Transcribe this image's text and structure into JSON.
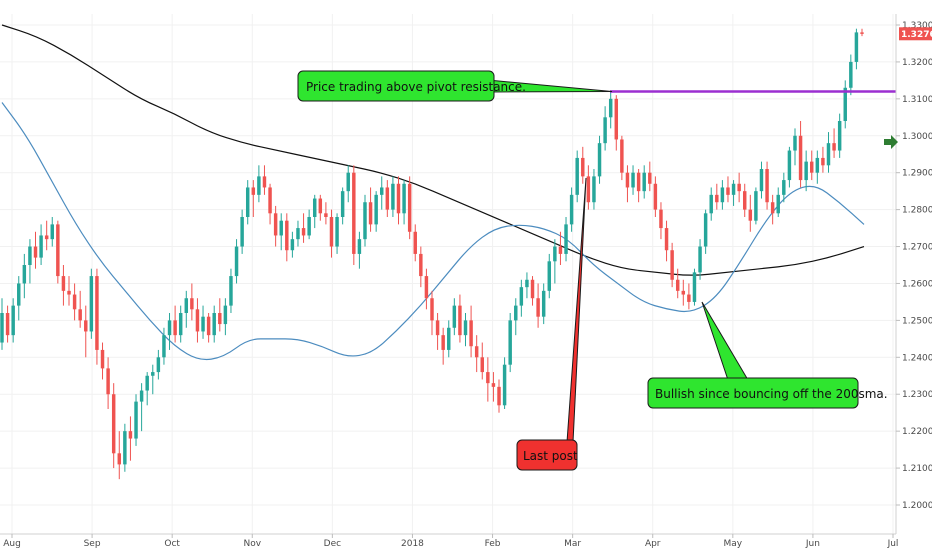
{
  "chart_data": {
    "type": "candlestick",
    "y_axis": {
      "min": 1.2,
      "max": 1.33,
      "side": "right",
      "ticks": [
        {
          "value": 1.33,
          "label": "1.33000"
        },
        {
          "value": 1.32,
          "label": "1.32000"
        },
        {
          "value": 1.31,
          "label": "1.31000"
        },
        {
          "value": 1.3,
          "label": "1.30000"
        },
        {
          "value": 1.29,
          "label": "1.29000"
        },
        {
          "value": 1.28,
          "label": "1.28000"
        },
        {
          "value": 1.27,
          "label": "1.27000"
        },
        {
          "value": 1.26,
          "label": "1.26000"
        },
        {
          "value": 1.25,
          "label": "1.25000"
        },
        {
          "value": 1.24,
          "label": "1.24000"
        },
        {
          "value": 1.23,
          "label": "1.23000"
        },
        {
          "value": 1.22,
          "label": "1.22000"
        },
        {
          "value": 1.21,
          "label": "1.21000"
        },
        {
          "value": 1.2,
          "label": "1.20000"
        }
      ]
    },
    "x_axis": {
      "ticks": [
        "Aug",
        "Sep",
        "Oct",
        "Nov",
        "Dec",
        "2018",
        "Feb",
        "Mar",
        "Apr",
        "May",
        "Jun",
        "Jul"
      ]
    },
    "last_price": {
      "value": 1.32762,
      "label": "1.32762"
    },
    "pivot_resistance": 1.312,
    "candles": [
      {
        "o": 1.244,
        "h": 1.256,
        "l": 1.242,
        "c": 1.252
      },
      {
        "o": 1.252,
        "h": 1.254,
        "l": 1.244,
        "c": 1.246
      },
      {
        "o": 1.246,
        "h": 1.256,
        "l": 1.244,
        "c": 1.254
      },
      {
        "o": 1.254,
        "h": 1.262,
        "l": 1.25,
        "c": 1.26
      },
      {
        "o": 1.26,
        "h": 1.268,
        "l": 1.256,
        "c": 1.265
      },
      {
        "o": 1.265,
        "h": 1.272,
        "l": 1.26,
        "c": 1.27
      },
      {
        "o": 1.27,
        "h": 1.274,
        "l": 1.264,
        "c": 1.267
      },
      {
        "o": 1.267,
        "h": 1.276,
        "l": 1.265,
        "c": 1.273
      },
      {
        "o": 1.273,
        "h": 1.277,
        "l": 1.269,
        "c": 1.272
      },
      {
        "o": 1.272,
        "h": 1.278,
        "l": 1.27,
        "c": 1.276
      },
      {
        "o": 1.276,
        "h": 1.277,
        "l": 1.26,
        "c": 1.262
      },
      {
        "o": 1.262,
        "h": 1.265,
        "l": 1.254,
        "c": 1.258
      },
      {
        "o": 1.258,
        "h": 1.262,
        "l": 1.254,
        "c": 1.257
      },
      {
        "o": 1.257,
        "h": 1.26,
        "l": 1.25,
        "c": 1.253
      },
      {
        "o": 1.253,
        "h": 1.258,
        "l": 1.248,
        "c": 1.25
      },
      {
        "o": 1.25,
        "h": 1.254,
        "l": 1.24,
        "c": 1.247
      },
      {
        "o": 1.247,
        "h": 1.264,
        "l": 1.245,
        "c": 1.262
      },
      {
        "o": 1.262,
        "h": 1.264,
        "l": 1.238,
        "c": 1.242
      },
      {
        "o": 1.242,
        "h": 1.244,
        "l": 1.234,
        "c": 1.237
      },
      {
        "o": 1.237,
        "h": 1.24,
        "l": 1.226,
        "c": 1.23
      },
      {
        "o": 1.23,
        "h": 1.233,
        "l": 1.21,
        "c": 1.214
      },
      {
        "o": 1.214,
        "h": 1.22,
        "l": 1.207,
        "c": 1.211
      },
      {
        "o": 1.211,
        "h": 1.222,
        "l": 1.209,
        "c": 1.22
      },
      {
        "o": 1.22,
        "h": 1.224,
        "l": 1.212,
        "c": 1.218
      },
      {
        "o": 1.218,
        "h": 1.23,
        "l": 1.216,
        "c": 1.228
      },
      {
        "o": 1.228,
        "h": 1.233,
        "l": 1.22,
        "c": 1.231
      },
      {
        "o": 1.231,
        "h": 1.236,
        "l": 1.227,
        "c": 1.235
      },
      {
        "o": 1.235,
        "h": 1.238,
        "l": 1.23,
        "c": 1.236
      },
      {
        "o": 1.236,
        "h": 1.242,
        "l": 1.234,
        "c": 1.24
      },
      {
        "o": 1.24,
        "h": 1.248,
        "l": 1.238,
        "c": 1.246
      },
      {
        "o": 1.246,
        "h": 1.252,
        "l": 1.242,
        "c": 1.25
      },
      {
        "o": 1.25,
        "h": 1.254,
        "l": 1.244,
        "c": 1.246
      },
      {
        "o": 1.246,
        "h": 1.254,
        "l": 1.244,
        "c": 1.252
      },
      {
        "o": 1.252,
        "h": 1.258,
        "l": 1.248,
        "c": 1.256
      },
      {
        "o": 1.256,
        "h": 1.26,
        "l": 1.25,
        "c": 1.253
      },
      {
        "o": 1.253,
        "h": 1.256,
        "l": 1.244,
        "c": 1.247
      },
      {
        "o": 1.247,
        "h": 1.254,
        "l": 1.245,
        "c": 1.251
      },
      {
        "o": 1.251,
        "h": 1.252,
        "l": 1.244,
        "c": 1.246
      },
      {
        "o": 1.246,
        "h": 1.254,
        "l": 1.244,
        "c": 1.252
      },
      {
        "o": 1.252,
        "h": 1.256,
        "l": 1.247,
        "c": 1.249
      },
      {
        "o": 1.249,
        "h": 1.256,
        "l": 1.246,
        "c": 1.254
      },
      {
        "o": 1.254,
        "h": 1.264,
        "l": 1.252,
        "c": 1.262
      },
      {
        "o": 1.262,
        "h": 1.272,
        "l": 1.26,
        "c": 1.27
      },
      {
        "o": 1.27,
        "h": 1.28,
        "l": 1.268,
        "c": 1.278
      },
      {
        "o": 1.278,
        "h": 1.288,
        "l": 1.276,
        "c": 1.286
      },
      {
        "o": 1.286,
        "h": 1.288,
        "l": 1.278,
        "c": 1.284
      },
      {
        "o": 1.284,
        "h": 1.292,
        "l": 1.282,
        "c": 1.289
      },
      {
        "o": 1.289,
        "h": 1.292,
        "l": 1.284,
        "c": 1.286
      },
      {
        "o": 1.286,
        "h": 1.287,
        "l": 1.276,
        "c": 1.279
      },
      {
        "o": 1.279,
        "h": 1.281,
        "l": 1.27,
        "c": 1.273
      },
      {
        "o": 1.273,
        "h": 1.279,
        "l": 1.269,
        "c": 1.277
      },
      {
        "o": 1.277,
        "h": 1.279,
        "l": 1.266,
        "c": 1.269
      },
      {
        "o": 1.269,
        "h": 1.274,
        "l": 1.267,
        "c": 1.272
      },
      {
        "o": 1.272,
        "h": 1.277,
        "l": 1.27,
        "c": 1.275
      },
      {
        "o": 1.275,
        "h": 1.279,
        "l": 1.271,
        "c": 1.273
      },
      {
        "o": 1.273,
        "h": 1.28,
        "l": 1.272,
        "c": 1.278
      },
      {
        "o": 1.278,
        "h": 1.284,
        "l": 1.275,
        "c": 1.283
      },
      {
        "o": 1.283,
        "h": 1.284,
        "l": 1.277,
        "c": 1.279
      },
      {
        "o": 1.279,
        "h": 1.282,
        "l": 1.276,
        "c": 1.278
      },
      {
        "o": 1.278,
        "h": 1.28,
        "l": 1.267,
        "c": 1.27
      },
      {
        "o": 1.27,
        "h": 1.279,
        "l": 1.268,
        "c": 1.278
      },
      {
        "o": 1.278,
        "h": 1.286,
        "l": 1.276,
        "c": 1.285
      },
      {
        "o": 1.285,
        "h": 1.292,
        "l": 1.282,
        "c": 1.29
      },
      {
        "o": 1.29,
        "h": 1.292,
        "l": 1.265,
        "c": 1.268
      },
      {
        "o": 1.268,
        "h": 1.274,
        "l": 1.264,
        "c": 1.272
      },
      {
        "o": 1.272,
        "h": 1.284,
        "l": 1.27,
        "c": 1.282
      },
      {
        "o": 1.282,
        "h": 1.286,
        "l": 1.274,
        "c": 1.276
      },
      {
        "o": 1.276,
        "h": 1.285,
        "l": 1.274,
        "c": 1.284
      },
      {
        "o": 1.284,
        "h": 1.289,
        "l": 1.28,
        "c": 1.286
      },
      {
        "o": 1.286,
        "h": 1.288,
        "l": 1.278,
        "c": 1.28
      },
      {
        "o": 1.28,
        "h": 1.289,
        "l": 1.278,
        "c": 1.287
      },
      {
        "o": 1.287,
        "h": 1.289,
        "l": 1.276,
        "c": 1.279
      },
      {
        "o": 1.279,
        "h": 1.288,
        "l": 1.276,
        "c": 1.287
      },
      {
        "o": 1.287,
        "h": 1.289,
        "l": 1.272,
        "c": 1.274
      },
      {
        "o": 1.274,
        "h": 1.276,
        "l": 1.266,
        "c": 1.268
      },
      {
        "o": 1.268,
        "h": 1.27,
        "l": 1.259,
        "c": 1.262
      },
      {
        "o": 1.262,
        "h": 1.264,
        "l": 1.253,
        "c": 1.256
      },
      {
        "o": 1.256,
        "h": 1.258,
        "l": 1.246,
        "c": 1.25
      },
      {
        "o": 1.25,
        "h": 1.252,
        "l": 1.242,
        "c": 1.246
      },
      {
        "o": 1.246,
        "h": 1.248,
        "l": 1.238,
        "c": 1.242
      },
      {
        "o": 1.242,
        "h": 1.25,
        "l": 1.24,
        "c": 1.248
      },
      {
        "o": 1.248,
        "h": 1.256,
        "l": 1.246,
        "c": 1.254
      },
      {
        "o": 1.254,
        "h": 1.257,
        "l": 1.244,
        "c": 1.246
      },
      {
        "o": 1.246,
        "h": 1.252,
        "l": 1.243,
        "c": 1.25
      },
      {
        "o": 1.25,
        "h": 1.254,
        "l": 1.24,
        "c": 1.243
      },
      {
        "o": 1.243,
        "h": 1.246,
        "l": 1.236,
        "c": 1.24
      },
      {
        "o": 1.24,
        "h": 1.244,
        "l": 1.234,
        "c": 1.236
      },
      {
        "o": 1.236,
        "h": 1.24,
        "l": 1.228,
        "c": 1.233
      },
      {
        "o": 1.233,
        "h": 1.236,
        "l": 1.228,
        "c": 1.232
      },
      {
        "o": 1.232,
        "h": 1.234,
        "l": 1.225,
        "c": 1.227
      },
      {
        "o": 1.227,
        "h": 1.24,
        "l": 1.226,
        "c": 1.238
      },
      {
        "o": 1.238,
        "h": 1.252,
        "l": 1.236,
        "c": 1.25
      },
      {
        "o": 1.25,
        "h": 1.256,
        "l": 1.246,
        "c": 1.254
      },
      {
        "o": 1.254,
        "h": 1.261,
        "l": 1.251,
        "c": 1.259
      },
      {
        "o": 1.259,
        "h": 1.263,
        "l": 1.256,
        "c": 1.261
      },
      {
        "o": 1.261,
        "h": 1.262,
        "l": 1.254,
        "c": 1.256
      },
      {
        "o": 1.256,
        "h": 1.26,
        "l": 1.248,
        "c": 1.251
      },
      {
        "o": 1.251,
        "h": 1.26,
        "l": 1.249,
        "c": 1.258
      },
      {
        "o": 1.258,
        "h": 1.268,
        "l": 1.256,
        "c": 1.266
      },
      {
        "o": 1.266,
        "h": 1.272,
        "l": 1.26,
        "c": 1.27
      },
      {
        "o": 1.27,
        "h": 1.274,
        "l": 1.265,
        "c": 1.268
      },
      {
        "o": 1.268,
        "h": 1.278,
        "l": 1.266,
        "c": 1.276
      },
      {
        "o": 1.276,
        "h": 1.286,
        "l": 1.274,
        "c": 1.284
      },
      {
        "o": 1.284,
        "h": 1.296,
        "l": 1.282,
        "c": 1.294
      },
      {
        "o": 1.294,
        "h": 1.297,
        "l": 1.287,
        "c": 1.289
      },
      {
        "o": 1.289,
        "h": 1.292,
        "l": 1.28,
        "c": 1.282
      },
      {
        "o": 1.282,
        "h": 1.291,
        "l": 1.28,
        "c": 1.289
      },
      {
        "o": 1.289,
        "h": 1.3,
        "l": 1.287,
        "c": 1.298
      },
      {
        "o": 1.298,
        "h": 1.308,
        "l": 1.296,
        "c": 1.305
      },
      {
        "o": 1.305,
        "h": 1.312,
        "l": 1.302,
        "c": 1.31
      },
      {
        "o": 1.31,
        "h": 1.311,
        "l": 1.296,
        "c": 1.299
      },
      {
        "o": 1.299,
        "h": 1.3,
        "l": 1.288,
        "c": 1.29
      },
      {
        "o": 1.29,
        "h": 1.292,
        "l": 1.282,
        "c": 1.286
      },
      {
        "o": 1.286,
        "h": 1.292,
        "l": 1.284,
        "c": 1.29
      },
      {
        "o": 1.29,
        "h": 1.291,
        "l": 1.282,
        "c": 1.285
      },
      {
        "o": 1.285,
        "h": 1.292,
        "l": 1.283,
        "c": 1.29
      },
      {
        "o": 1.29,
        "h": 1.293,
        "l": 1.285,
        "c": 1.287
      },
      {
        "o": 1.287,
        "h": 1.289,
        "l": 1.278,
        "c": 1.28
      },
      {
        "o": 1.28,
        "h": 1.282,
        "l": 1.272,
        "c": 1.275
      },
      {
        "o": 1.275,
        "h": 1.277,
        "l": 1.266,
        "c": 1.269
      },
      {
        "o": 1.269,
        "h": 1.271,
        "l": 1.259,
        "c": 1.261
      },
      {
        "o": 1.261,
        "h": 1.264,
        "l": 1.256,
        "c": 1.258
      },
      {
        "o": 1.258,
        "h": 1.261,
        "l": 1.254,
        "c": 1.257
      },
      {
        "o": 1.257,
        "h": 1.26,
        "l": 1.253,
        "c": 1.255
      },
      {
        "o": 1.255,
        "h": 1.264,
        "l": 1.254,
        "c": 1.263
      },
      {
        "o": 1.263,
        "h": 1.272,
        "l": 1.261,
        "c": 1.27
      },
      {
        "o": 1.27,
        "h": 1.28,
        "l": 1.268,
        "c": 1.279
      },
      {
        "o": 1.279,
        "h": 1.286,
        "l": 1.277,
        "c": 1.284
      },
      {
        "o": 1.284,
        "h": 1.287,
        "l": 1.28,
        "c": 1.282
      },
      {
        "o": 1.282,
        "h": 1.288,
        "l": 1.28,
        "c": 1.286
      },
      {
        "o": 1.286,
        "h": 1.289,
        "l": 1.282,
        "c": 1.284
      },
      {
        "o": 1.284,
        "h": 1.288,
        "l": 1.281,
        "c": 1.287
      },
      {
        "o": 1.287,
        "h": 1.29,
        "l": 1.282,
        "c": 1.285
      },
      {
        "o": 1.285,
        "h": 1.287,
        "l": 1.278,
        "c": 1.28
      },
      {
        "o": 1.28,
        "h": 1.284,
        "l": 1.274,
        "c": 1.277
      },
      {
        "o": 1.277,
        "h": 1.286,
        "l": 1.276,
        "c": 1.285
      },
      {
        "o": 1.285,
        "h": 1.293,
        "l": 1.283,
        "c": 1.291
      },
      {
        "o": 1.291,
        "h": 1.293,
        "l": 1.28,
        "c": 1.282
      },
      {
        "o": 1.282,
        "h": 1.284,
        "l": 1.276,
        "c": 1.279
      },
      {
        "o": 1.279,
        "h": 1.286,
        "l": 1.278,
        "c": 1.284
      },
      {
        "o": 1.284,
        "h": 1.29,
        "l": 1.282,
        "c": 1.288
      },
      {
        "o": 1.288,
        "h": 1.297,
        "l": 1.286,
        "c": 1.296
      },
      {
        "o": 1.296,
        "h": 1.302,
        "l": 1.292,
        "c": 1.3
      },
      {
        "o": 1.3,
        "h": 1.304,
        "l": 1.286,
        "c": 1.288
      },
      {
        "o": 1.288,
        "h": 1.296,
        "l": 1.285,
        "c": 1.293
      },
      {
        "o": 1.293,
        "h": 1.296,
        "l": 1.288,
        "c": 1.29
      },
      {
        "o": 1.29,
        "h": 1.296,
        "l": 1.287,
        "c": 1.294
      },
      {
        "o": 1.294,
        "h": 1.297,
        "l": 1.29,
        "c": 1.292
      },
      {
        "o": 1.292,
        "h": 1.301,
        "l": 1.29,
        "c": 1.298
      },
      {
        "o": 1.298,
        "h": 1.302,
        "l": 1.294,
        "c": 1.296
      },
      {
        "o": 1.296,
        "h": 1.306,
        "l": 1.294,
        "c": 1.304
      },
      {
        "o": 1.304,
        "h": 1.315,
        "l": 1.302,
        "c": 1.313
      },
      {
        "o": 1.313,
        "h": 1.322,
        "l": 1.311,
        "c": 1.32
      },
      {
        "o": 1.32,
        "h": 1.329,
        "l": 1.318,
        "c": 1.328
      },
      {
        "o": 1.328,
        "h": 1.329,
        "l": 1.327,
        "c": 1.3276
      }
    ],
    "sma_50": [
      1.309,
      1.3,
      1.288,
      1.276,
      1.266,
      1.258,
      1.25,
      1.243,
      1.239,
      1.24,
      1.245,
      1.245,
      1.245,
      1.243,
      1.24,
      1.241,
      1.247,
      1.254,
      1.262,
      1.27,
      1.275,
      1.276,
      1.275,
      1.272,
      1.265,
      1.26,
      1.255,
      1.253,
      1.252,
      1.256,
      1.266,
      1.277,
      1.285,
      1.287,
      1.282,
      1.276
    ],
    "sma_200": [
      1.33,
      1.327,
      1.322,
      1.316,
      1.31,
      1.306,
      1.301,
      1.298,
      1.296,
      1.294,
      1.292,
      1.29,
      1.287,
      1.283,
      1.279,
      1.275,
      1.271,
      1.267,
      1.264,
      1.263,
      1.262,
      1.263,
      1.264,
      1.265,
      1.267,
      1.27
    ],
    "annotations": [
      {
        "text": "Price trading above pivot resistance.",
        "color": "#2fe52f"
      },
      {
        "text": "Bullish since bouncing off the 200sma.",
        "color": "#2fe52f"
      },
      {
        "text": "Last post",
        "color": "#f0312f"
      }
    ],
    "colors": {
      "up": "#26a69a",
      "down": "#ef5350",
      "sma_50": "#4c8cbf",
      "sma_200": "#111111",
      "pivot": "#9b2fd0",
      "price_tag": "#ef5350",
      "arrow_marker": "#2e7d32",
      "grid": "#f1f1f1"
    }
  }
}
